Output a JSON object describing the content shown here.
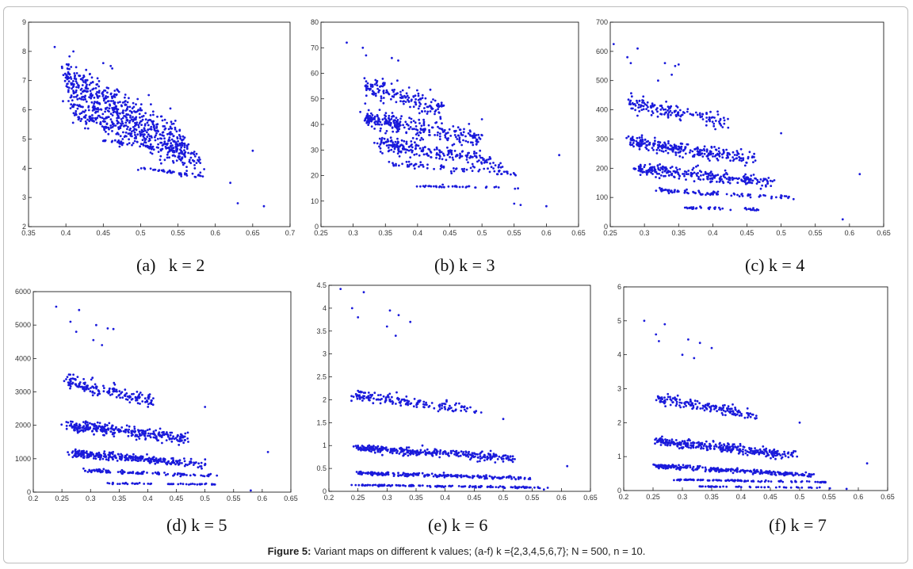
{
  "colors": {
    "marker": "#1a1adb",
    "axis": "#000000",
    "frame": "#bdbdbd"
  },
  "caption": {
    "prefix": "Figure 5:",
    "text": " Variant maps on different k values; (a-f) k ={2,3,4,5,6,7}; N = 500, n = 10."
  },
  "chart_data": [
    {
      "type": "scatter",
      "label": "(a)   k = 2",
      "xlim": [
        0.35,
        0.7
      ],
      "ylim": [
        2,
        9
      ],
      "xticks": [
        "0.35",
        "0.4",
        "0.45",
        "0.5",
        "0.55",
        "0.6",
        "0.65",
        "0.7"
      ],
      "yticks": [
        "2",
        "3",
        "4",
        "5",
        "6",
        "7",
        "8",
        "9"
      ],
      "bands": [
        {
          "x": [
            0.4,
            0.56
          ],
          "y": [
            7.1,
            4.7
          ],
          "spread": 0.55,
          "n": 520
        },
        {
          "x": [
            0.41,
            0.58
          ],
          "y": [
            6.0,
            4.2
          ],
          "spread": 0.35,
          "n": 260
        },
        {
          "x": [
            0.45,
            0.55
          ],
          "y": [
            4.95,
            4.6
          ],
          "spread": 0.05,
          "n": 40
        },
        {
          "x": [
            0.5,
            0.59
          ],
          "y": [
            4.0,
            3.7
          ],
          "spread": 0.05,
          "n": 40
        }
      ],
      "outliers": [
        [
          0.385,
          8.15
        ],
        [
          0.41,
          8.0
        ],
        [
          0.45,
          7.6
        ],
        [
          0.46,
          7.5
        ],
        [
          0.65,
          4.6
        ],
        [
          0.63,
          2.8
        ],
        [
          0.665,
          2.7
        ],
        [
          0.62,
          3.5
        ]
      ]
    },
    {
      "type": "scatter",
      "label": "(b) k = 3",
      "xlim": [
        0.25,
        0.65
      ],
      "ylim": [
        0,
        80
      ],
      "xticks": [
        "0.25",
        "0.3",
        "0.35",
        "0.4",
        "0.45",
        "0.5",
        "0.55",
        "0.6",
        "0.65"
      ],
      "yticks": [
        "0",
        "10",
        "20",
        "30",
        "40",
        "50",
        "60",
        "70",
        "80"
      ],
      "bands": [
        {
          "x": [
            0.32,
            0.44
          ],
          "y": [
            55,
            46
          ],
          "spread": 3,
          "n": 170
        },
        {
          "x": [
            0.32,
            0.5
          ],
          "y": [
            42,
            34
          ],
          "spread": 3,
          "n": 280
        },
        {
          "x": [
            0.34,
            0.53
          ],
          "y": [
            33,
            25
          ],
          "spread": 2.5,
          "n": 220
        },
        {
          "x": [
            0.36,
            0.55
          ],
          "y": [
            24.5,
            21
          ],
          "spread": 1,
          "n": 70
        },
        {
          "x": [
            0.4,
            0.56
          ],
          "y": [
            16,
            15
          ],
          "spread": 0.4,
          "n": 40
        }
      ],
      "outliers": [
        [
          0.29,
          72
        ],
        [
          0.315,
          70
        ],
        [
          0.32,
          67
        ],
        [
          0.36,
          66
        ],
        [
          0.37,
          65
        ],
        [
          0.62,
          28
        ],
        [
          0.6,
          8
        ],
        [
          0.55,
          9
        ],
        [
          0.56,
          8.5
        ],
        [
          0.5,
          42
        ]
      ]
    },
    {
      "type": "scatter",
      "label": "(c) k = 4",
      "xlim": [
        0.25,
        0.65
      ],
      "ylim": [
        0,
        700
      ],
      "xticks": [
        "0.25",
        "0.3",
        "0.35",
        "0.4",
        "0.45",
        "0.5",
        "0.55",
        "0.6",
        "0.65"
      ],
      "yticks": [
        "0",
        "100",
        "200",
        "300",
        "400",
        "500",
        "600",
        "700"
      ],
      "bands": [
        {
          "x": [
            0.28,
            0.42
          ],
          "y": [
            420,
            360
          ],
          "spread": 22,
          "n": 150
        },
        {
          "x": [
            0.28,
            0.46
          ],
          "y": [
            290,
            230
          ],
          "spread": 20,
          "n": 260
        },
        {
          "x": [
            0.29,
            0.49
          ],
          "y": [
            200,
            150
          ],
          "spread": 16,
          "n": 260
        },
        {
          "x": [
            0.32,
            0.52
          ],
          "y": [
            125,
            100
          ],
          "spread": 6,
          "n": 90
        },
        {
          "x": [
            0.36,
            0.47
          ],
          "y": [
            65,
            58
          ],
          "spread": 3,
          "n": 40
        }
      ],
      "outliers": [
        [
          0.255,
          625
        ],
        [
          0.275,
          580
        ],
        [
          0.29,
          610
        ],
        [
          0.28,
          560
        ],
        [
          0.33,
          560
        ],
        [
          0.345,
          550
        ],
        [
          0.35,
          555
        ],
        [
          0.34,
          520
        ],
        [
          0.32,
          500
        ],
        [
          0.615,
          180
        ],
        [
          0.59,
          25
        ],
        [
          0.5,
          320
        ]
      ]
    },
    {
      "type": "scatter",
      "label": "(d) k = 5",
      "xlim": [
        0.2,
        0.65
      ],
      "ylim": [
        0,
        6000
      ],
      "xticks": [
        "0.2",
        "0.25",
        "0.3",
        "0.35",
        "0.4",
        "0.45",
        "0.5",
        "0.55",
        "0.6",
        "0.65"
      ],
      "yticks": [
        "0",
        "1000",
        "2000",
        "3000",
        "4000",
        "5000",
        "6000"
      ],
      "bands": [
        {
          "x": [
            0.26,
            0.41
          ],
          "y": [
            3300,
            2700
          ],
          "spread": 170,
          "n": 170
        },
        {
          "x": [
            0.26,
            0.47
          ],
          "y": [
            2000,
            1600
          ],
          "spread": 130,
          "n": 300
        },
        {
          "x": [
            0.27,
            0.5
          ],
          "y": [
            1150,
            850
          ],
          "spread": 90,
          "n": 300
        },
        {
          "x": [
            0.29,
            0.52
          ],
          "y": [
            650,
            480
          ],
          "spread": 40,
          "n": 110
        },
        {
          "x": [
            0.33,
            0.52
          ],
          "y": [
            260,
            230
          ],
          "spread": 20,
          "n": 50
        }
      ],
      "outliers": [
        [
          0.24,
          5550
        ],
        [
          0.265,
          5100
        ],
        [
          0.28,
          5450
        ],
        [
          0.275,
          4800
        ],
        [
          0.31,
          5000
        ],
        [
          0.33,
          4900
        ],
        [
          0.34,
          4880
        ],
        [
          0.305,
          4550
        ],
        [
          0.32,
          4400
        ],
        [
          0.61,
          1200
        ],
        [
          0.58,
          50
        ],
        [
          0.5,
          2550
        ]
      ]
    },
    {
      "type": "scatter",
      "label": "(e) k = 6",
      "xlim": [
        0.2,
        0.65
      ],
      "ylim": [
        0,
        4.5
      ],
      "xticks": [
        "0.2",
        "0.25",
        "0.3",
        "0.35",
        "0.4",
        "0.45",
        "0.5",
        "0.55",
        "0.6",
        "0.65"
      ],
      "yticks": [
        "0",
        "0.5",
        "1",
        "1.5",
        "2",
        "2.5",
        "3",
        "3.5",
        "4",
        "4.5"
      ],
      "bands": [
        {
          "x": [
            0.245,
            0.46
          ],
          "y": [
            2.1,
            1.75
          ],
          "spread": 0.1,
          "n": 160
        },
        {
          "x": [
            0.25,
            0.52
          ],
          "y": [
            0.95,
            0.72
          ],
          "spread": 0.07,
          "n": 330
        },
        {
          "x": [
            0.25,
            0.55
          ],
          "y": [
            0.4,
            0.28
          ],
          "spread": 0.03,
          "n": 230
        },
        {
          "x": [
            0.25,
            0.57
          ],
          "y": [
            0.14,
            0.08
          ],
          "spread": 0.015,
          "n": 140
        }
      ],
      "outliers": [
        [
          0.22,
          4.42
        ],
        [
          0.26,
          4.35
        ],
        [
          0.24,
          4.0
        ],
        [
          0.25,
          3.8
        ],
        [
          0.3,
          3.6
        ],
        [
          0.305,
          3.95
        ],
        [
          0.32,
          3.85
        ],
        [
          0.34,
          3.7
        ],
        [
          0.315,
          3.4
        ],
        [
          0.5,
          1.58
        ],
        [
          0.61,
          0.55
        ],
        [
          0.57,
          0.04
        ]
      ]
    },
    {
      "type": "scatter",
      "label": "(f) k = 7",
      "xlim": [
        0.2,
        0.65
      ],
      "ylim": [
        0,
        6
      ],
      "xticks": [
        "0.2",
        "0.25",
        "0.3",
        "0.35",
        "0.4",
        "0.45",
        "0.5",
        "0.55",
        "0.6",
        "0.65"
      ],
      "yticks": [
        "0",
        "1",
        "2",
        "3",
        "4",
        "5",
        "6"
      ],
      "bands": [
        {
          "x": [
            0.26,
            0.43
          ],
          "y": [
            2.7,
            2.2
          ],
          "spread": 0.12,
          "n": 160
        },
        {
          "x": [
            0.26,
            0.49
          ],
          "y": [
            1.45,
            1.05
          ],
          "spread": 0.1,
          "n": 320
        },
        {
          "x": [
            0.26,
            0.52
          ],
          "y": [
            0.72,
            0.45
          ],
          "spread": 0.05,
          "n": 270
        },
        {
          "x": [
            0.29,
            0.55
          ],
          "y": [
            0.32,
            0.25
          ],
          "spread": 0.02,
          "n": 110
        },
        {
          "x": [
            0.33,
            0.55
          ],
          "y": [
            0.12,
            0.08
          ],
          "spread": 0.01,
          "n": 50
        }
      ],
      "outliers": [
        [
          0.235,
          5.0
        ],
        [
          0.255,
          4.6
        ],
        [
          0.27,
          4.9
        ],
        [
          0.26,
          4.4
        ],
        [
          0.31,
          4.45
        ],
        [
          0.33,
          4.35
        ],
        [
          0.35,
          4.2
        ],
        [
          0.3,
          4.0
        ],
        [
          0.32,
          3.9
        ],
        [
          0.5,
          2.0
        ],
        [
          0.615,
          0.8
        ],
        [
          0.58,
          0.05
        ]
      ]
    }
  ]
}
